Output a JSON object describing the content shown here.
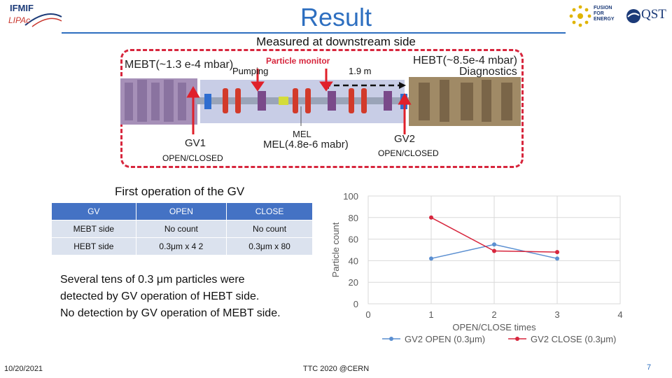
{
  "header": {
    "title": "Result",
    "logo_left_line1": "IFMIF",
    "logo_left_line2": "LIPAc",
    "logo_right_text": "FUSION FOR ENERGY",
    "logo_right_brand": "QST"
  },
  "subtitle": "Measured at downstream side",
  "diagram": {
    "mebt_label": "MEBT(~1.3 e-4 mbar)",
    "hebt_label": "HEBT(~8.5e-4 mbar)",
    "diagnostics_label": "Diagnostics",
    "pumping_label": "Pumping",
    "particle_monitor_label": "Particle monitor",
    "distance_label": "1.9 m",
    "mel_label": "MEL",
    "mel_pressure_label": "MEL(4.8e-6 mabr)",
    "gv1_label": "GV1",
    "gv2_label": "GV2",
    "gv1_state": "OPEN/CLOSED",
    "gv2_state": "OPEN/CLOSED"
  },
  "table": {
    "title": "First operation of the GV",
    "headers": [
      "GV",
      "OPEN",
      "CLOSE"
    ],
    "rows": [
      [
        "MEBT side",
        "No count",
        "No count"
      ],
      [
        "HEBT side",
        "0.3μm x 4 2",
        "0.3μm x 80"
      ]
    ]
  },
  "note": {
    "line1": "Several tens of 0.3 μm particles were",
    "line2": "detected by GV operation of HEBT side.",
    "line3": "No detection by GV operation of MEBT side."
  },
  "colors": {
    "accent": "#2e6fc0",
    "dashed_red": "#d7263d",
    "series_open": "#5b8fd1",
    "series_close": "#d7263d"
  },
  "chart_data": {
    "type": "line",
    "title": "",
    "xlabel": "OPEN/CLOSE times",
    "ylabel": "Particle count",
    "xlim": [
      0,
      4
    ],
    "ylim": [
      0,
      100
    ],
    "xticks": [
      0,
      1,
      2,
      3,
      4
    ],
    "yticks": [
      0,
      20,
      40,
      60,
      80,
      100
    ],
    "grid": true,
    "legend": "bottom",
    "series": [
      {
        "name": "GV2 OPEN (0.3μm)",
        "color": "#5b8fd1",
        "x": [
          1,
          2,
          3
        ],
        "y": [
          42,
          55,
          42
        ]
      },
      {
        "name": "GV2 CLOSE (0.3μm)",
        "color": "#d7263d",
        "x": [
          1,
          2,
          3
        ],
        "y": [
          80,
          49,
          48
        ]
      }
    ]
  },
  "footer": {
    "date": "10/20/2021",
    "center": "TTC 2020 @CERN",
    "page": "7"
  }
}
